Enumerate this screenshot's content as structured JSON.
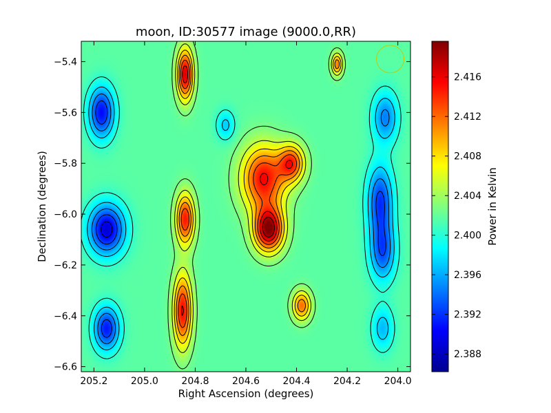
{
  "chart_data": {
    "type": "heatmap",
    "title": "moon, ID:30577 image (9000.0,RR)",
    "xlabel": "Right Ascension (degrees)",
    "ylabel": "Declination (degrees)",
    "colorbar_label": "Power in Kelvin",
    "colormap": "jet",
    "contour_lines": true,
    "contour_color": "#000000",
    "beam_marker": {
      "shape": "circle",
      "color": "#c8c800",
      "ra": 204.03,
      "dec": -5.39
    },
    "xlim": [
      205.25,
      203.95
    ],
    "ylim": [
      -6.62,
      -5.32
    ],
    "x_ticks": [
      205.2,
      205.0,
      204.8,
      204.6,
      204.4,
      204.2,
      204.0
    ],
    "x_tick_labels": [
      "205.2",
      "205.0",
      "204.8",
      "204.6",
      "204.4",
      "204.2",
      "204.0"
    ],
    "y_ticks": [
      -5.4,
      -5.6,
      -5.8,
      -6.0,
      -6.2,
      -6.4,
      -6.6
    ],
    "y_tick_labels": [
      "−5.4",
      "−5.6",
      "−5.8",
      "−6.0",
      "−6.2",
      "−6.4",
      "−6.6"
    ],
    "colorbar_range": [
      2.3862,
      2.4196
    ],
    "colorbar_ticks": [
      2.388,
      2.392,
      2.396,
      2.4,
      2.404,
      2.408,
      2.412,
      2.416
    ],
    "colorbar_tick_labels": [
      "2.388",
      "2.392",
      "2.396",
      "2.400",
      "2.404",
      "2.408",
      "2.412",
      "2.416"
    ],
    "features": [
      {
        "ra": 204.51,
        "dec": -6.06,
        "value": 2.4194,
        "sx": 0.04,
        "sy": 0.06
      },
      {
        "ra": 204.53,
        "dec": -5.86,
        "value": 2.4155,
        "sx": 0.06,
        "sy": 0.09
      },
      {
        "ra": 204.42,
        "dec": -5.8,
        "value": 2.4135,
        "sx": 0.035,
        "sy": 0.05
      },
      {
        "ra": 204.84,
        "dec": -5.45,
        "value": 2.417,
        "sx": 0.022,
        "sy": 0.07
      },
      {
        "ra": 204.84,
        "dec": -6.02,
        "value": 2.415,
        "sx": 0.025,
        "sy": 0.07
      },
      {
        "ra": 204.85,
        "dec": -6.38,
        "value": 2.4155,
        "sx": 0.025,
        "sy": 0.1
      },
      {
        "ra": 204.38,
        "dec": -6.36,
        "value": 2.412,
        "sx": 0.025,
        "sy": 0.04
      },
      {
        "ra": 204.24,
        "dec": -5.41,
        "value": 2.412,
        "sx": 0.015,
        "sy": 0.03
      },
      {
        "ra": 205.15,
        "dec": -6.06,
        "value": 2.389,
        "sx": 0.05,
        "sy": 0.07
      },
      {
        "ra": 205.17,
        "dec": -5.6,
        "value": 2.3905,
        "sx": 0.035,
        "sy": 0.07
      },
      {
        "ra": 205.15,
        "dec": -6.45,
        "value": 2.391,
        "sx": 0.035,
        "sy": 0.06
      },
      {
        "ra": 204.07,
        "dec": -5.95,
        "value": 2.392,
        "sx": 0.035,
        "sy": 0.1
      },
      {
        "ra": 204.06,
        "dec": -6.15,
        "value": 2.3935,
        "sx": 0.035,
        "sy": 0.08
      },
      {
        "ra": 204.05,
        "dec": -5.62,
        "value": 2.3945,
        "sx": 0.035,
        "sy": 0.07
      },
      {
        "ra": 204.68,
        "dec": -5.65,
        "value": 2.397,
        "sx": 0.025,
        "sy": 0.04
      },
      {
        "ra": 204.06,
        "dec": -6.45,
        "value": 2.3965,
        "sx": 0.03,
        "sy": 0.06
      }
    ]
  }
}
